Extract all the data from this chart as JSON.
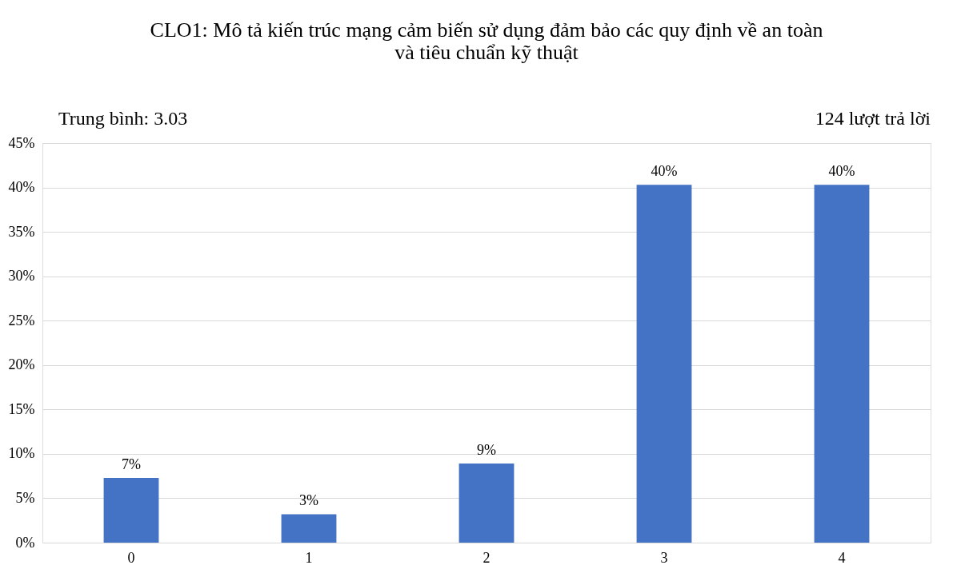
{
  "chart_data": {
    "type": "bar",
    "title": "CLO1: Mô tả kiến trúc mạng cảm biến sử dụng đảm bảo các quy định về an toàn và tiêu chuẩn kỹ thuật",
    "categories": [
      "0",
      "1",
      "2",
      "3",
      "4"
    ],
    "values": [
      7.3,
      3.2,
      8.9,
      40.3,
      40.3
    ],
    "value_labels": [
      "7%",
      "3%",
      "9%",
      "40%",
      "40%"
    ],
    "color": "#4472c4",
    "ylim": [
      0,
      45
    ],
    "yticks": [
      {
        "value": 0,
        "label": "0%"
      },
      {
        "value": 5,
        "label": "5%"
      },
      {
        "value": 10,
        "label": "10%"
      },
      {
        "value": 15,
        "label": "15%"
      },
      {
        "value": 20,
        "label": "20%"
      },
      {
        "value": 25,
        "label": "25%"
      },
      {
        "value": 30,
        "label": "30%"
      },
      {
        "value": 35,
        "label": "35%"
      },
      {
        "value": 40,
        "label": "40%"
      },
      {
        "value": 45,
        "label": "45%"
      }
    ],
    "grid": "y",
    "annotations": [
      "Trung bình: 3.03",
      "124 lượt trả lời"
    ]
  }
}
